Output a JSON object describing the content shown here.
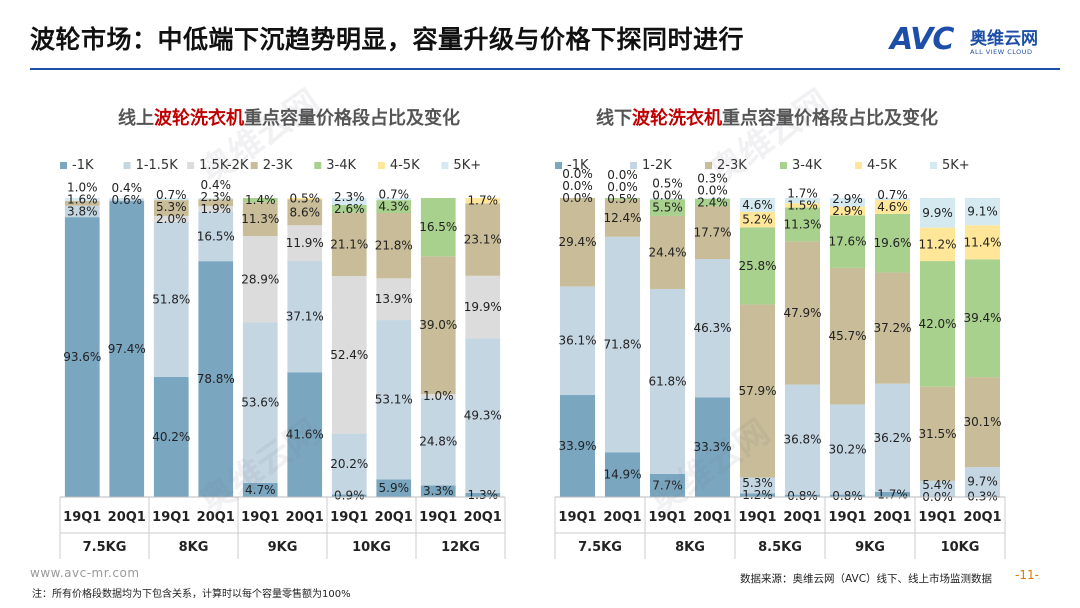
{
  "header": {
    "title": "波轮市场：中低端下沉趋势明显，容量升级与价格下探同时进行",
    "logo_mark": "AVC",
    "logo_cn": "奥维云网",
    "logo_en": "ALL VIEW CLOUD"
  },
  "watermark": {
    "text": "奥维云网",
    "sub": "ALL VIEW CLOUD"
  },
  "colors": {
    "accent": "#1e4fa8",
    "highlight": "#c00000",
    "page_number": "#e07b00"
  },
  "chart_data": [
    {
      "type": "stacked-bar",
      "title_prefix": "线上",
      "title_highlight": "波轮洗衣机",
      "title_suffix": "重点容量价格段占比及变化",
      "percent_suffix": "%",
      "series": [
        {
          "name": "-1K",
          "color": "#7aa6c0",
          "values": [
            93.6,
            97.4,
            40.2,
            78.8,
            4.7,
            41.6,
            0.9,
            5.9,
            3.3,
            1.3
          ]
        },
        {
          "name": "1-1.5K",
          "color": "#c5d6e3",
          "values": [
            3.8,
            0.6,
            51.8,
            16.5,
            53.6,
            37.1,
            20.2,
            53.1,
            24.8,
            49.3
          ]
        },
        {
          "name": "1.5K-2K",
          "color": "#dcdcdc",
          "values": [
            0,
            0,
            2.0,
            1.9,
            28.9,
            11.9,
            52.4,
            13.9,
            1.0,
            19.9
          ]
        },
        {
          "name": "2-3K",
          "color": "#c8bd98",
          "values": [
            1.6,
            0,
            5.3,
            2.3,
            11.3,
            8.6,
            21.1,
            21.8,
            39.0,
            23.1
          ]
        },
        {
          "name": "3-4K",
          "color": "#a9d18e",
          "values": [
            0,
            0,
            0,
            0,
            1.4,
            0,
            2.6,
            4.3,
            16.5,
            0
          ]
        },
        {
          "name": "4-5K",
          "color": "#ffe699",
          "values": [
            0,
            0,
            0,
            0,
            0,
            0.5,
            0,
            0,
            0,
            1.7
          ]
        },
        {
          "name": "5K+",
          "color": "#d4e9f0",
          "values": [
            1.0,
            0.4,
            0.7,
            0.4,
            0,
            0,
            2.3,
            0.7,
            0,
            0
          ]
        }
      ],
      "periods": [
        "19Q1",
        "20Q1",
        "19Q1",
        "20Q1",
        "19Q1",
        "20Q1",
        "19Q1",
        "20Q1",
        "19Q1",
        "20Q1"
      ],
      "groups": [
        "7.5KG",
        "8KG",
        "9KG",
        "10KG",
        "12KG"
      ]
    },
    {
      "type": "stacked-bar",
      "title_prefix": "线下",
      "title_highlight": "波轮洗衣机",
      "title_suffix": "重点容量价格段占比及变化",
      "percent_suffix": "%",
      "series": [
        {
          "name": "-1K",
          "color": "#7aa6c0",
          "values": [
            33.9,
            14.9,
            7.7,
            33.3,
            1.2,
            0.8,
            0.8,
            1.7,
            0.0,
            0.3
          ]
        },
        {
          "name": "1-2K",
          "color": "#c5d6e3",
          "values": [
            36.1,
            71.8,
            61.8,
            46.3,
            5.3,
            36.8,
            30.2,
            36.2,
            5.4,
            9.7
          ]
        },
        {
          "name": "2-3K",
          "color": "#c8bd98",
          "values": [
            29.4,
            12.4,
            24.4,
            17.7,
            57.9,
            47.9,
            45.7,
            37.2,
            31.5,
            30.1
          ]
        },
        {
          "name": "3-4K",
          "color": "#a9d18e",
          "values": [
            0.0,
            0.5,
            5.5,
            2.4,
            25.8,
            11.3,
            17.6,
            19.6,
            42.0,
            39.4
          ]
        },
        {
          "name": "4-5K",
          "color": "#ffe699",
          "values": [
            0,
            0,
            0,
            0,
            5.2,
            1.5,
            2.9,
            4.6,
            11.2,
            11.4
          ]
        },
        {
          "name": "5K+",
          "color": "#d4e9f0",
          "values": [
            0,
            0,
            0.5,
            0.3,
            4.6,
            1.7,
            2.9,
            0.7,
            9.9,
            9.1
          ]
        }
      ],
      "periods": [
        "19Q1",
        "20Q1",
        "19Q1",
        "20Q1",
        "19Q1",
        "20Q1",
        "19Q1",
        "20Q1",
        "19Q1",
        "20Q1"
      ],
      "groups": [
        "7.5KG",
        "8KG",
        "8.5KG",
        "9KG",
        "10KG"
      ]
    }
  ],
  "footer": {
    "url": "www.avc-mr.com",
    "note": "注：所有价格段数据均为下包含关系，计算时以每个容量零售额为100%",
    "source": "数据来源：奥维云网（AVC）线下、线上市场监测数据",
    "page": "-11-"
  }
}
